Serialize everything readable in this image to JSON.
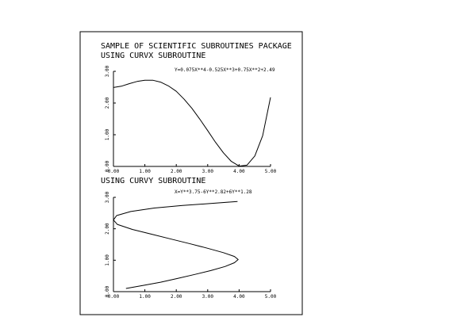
{
  "page": {
    "title_line1": "SAMPLE OF SCIENTIFIC SUBROUTINES PACKAGE",
    "title_line2": "USING CURVX SUBROUTINE",
    "title_line3": "USING CURVY SUBROUTINE"
  },
  "chart_data": [
    {
      "type": "line",
      "title": "USING CURVX SUBROUTINE",
      "annotation": "Y=0.075X**4-0.525X**3+0.75X**2+2.49",
      "xlim": [
        0,
        5
      ],
      "ylim": [
        0,
        3
      ],
      "x_ticks": [
        "0.00",
        "1.00",
        "2.00",
        "3.00",
        "4.00",
        "5.00"
      ],
      "y_ticks": [
        "0.00",
        "1.00",
        "2.00",
        "3.00"
      ],
      "xlabel": "",
      "ylabel": "",
      "grid": false,
      "series": [
        {
          "x": [
            0,
            0.25,
            0.5,
            0.75,
            1.0,
            1.25,
            1.5,
            1.75,
            2.0,
            2.25,
            2.5,
            2.75,
            3.0,
            3.25,
            3.5,
            3.75,
            4.0,
            4.25,
            4.5,
            4.75,
            5.0
          ],
          "y": [
            2.49,
            2.53,
            2.61,
            2.68,
            2.72,
            2.72,
            2.66,
            2.54,
            2.37,
            2.12,
            1.83,
            1.49,
            1.13,
            0.76,
            0.43,
            0.16,
            0.01,
            0.04,
            0.33,
            0.97,
            2.18
          ]
        }
      ]
    },
    {
      "type": "line",
      "title": "USING CURVY SUBROUTINE",
      "annotation": "X=Y**3.75-6Y**2.82+6Y**1.28",
      "xlim": [
        0,
        5
      ],
      "ylim": [
        0,
        3
      ],
      "x_ticks": [
        "0.00",
        "1.00",
        "2.00",
        "3.00",
        "4.00",
        "5.00"
      ],
      "y_ticks": [
        "0.00",
        "1.00",
        "2.00",
        "3.00"
      ],
      "xlabel": "",
      "ylabel": "",
      "grid": false,
      "series": [
        {
          "x": [
            0.4,
            0.95,
            1.5,
            2.05,
            2.6,
            3.1,
            3.55,
            3.85,
            3.97,
            3.85,
            3.5,
            3.0,
            2.45,
            1.85,
            1.2,
            0.6,
            0.12,
            0.0,
            0.1,
            0.55,
            1.3,
            2.2,
            3.05,
            3.95
          ],
          "y": [
            0.1,
            0.2,
            0.3,
            0.42,
            0.55,
            0.67,
            0.8,
            0.92,
            1.02,
            1.12,
            1.24,
            1.38,
            1.52,
            1.67,
            1.83,
            1.98,
            2.14,
            2.28,
            2.42,
            2.55,
            2.66,
            2.74,
            2.8,
            2.87
          ]
        }
      ]
    }
  ]
}
